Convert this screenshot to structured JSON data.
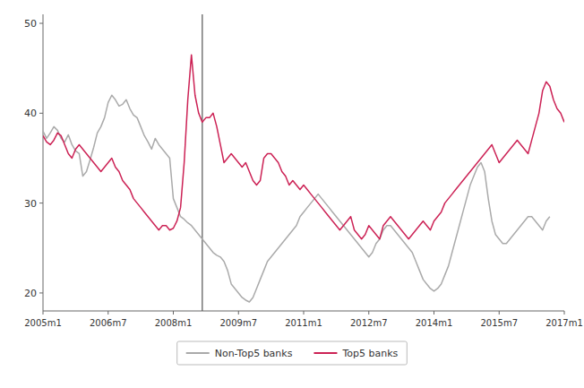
{
  "chart_data": {
    "type": "line",
    "xlim": [
      0,
      144
    ],
    "xticks": [
      {
        "value": 0,
        "label": "2005m1"
      },
      {
        "value": 18,
        "label": "2006m7"
      },
      {
        "value": 36,
        "label": "2008m1"
      },
      {
        "value": 54,
        "label": "2009m7"
      },
      {
        "value": 72,
        "label": "2011m1"
      },
      {
        "value": 90,
        "label": "2012m7"
      },
      {
        "value": 108,
        "label": "2014m1"
      },
      {
        "value": 126,
        "label": "2015m7"
      },
      {
        "value": 144,
        "label": "2017m1"
      }
    ],
    "ylim": [
      18,
      51
    ],
    "yticks": [
      20,
      30,
      40,
      50
    ],
    "vline": 44,
    "grid": false,
    "legend": "bottom",
    "series": [
      {
        "name": "Non-Top5 banks",
        "color": "#aaaaaa",
        "x": [
          0,
          1,
          2,
          3,
          4,
          5,
          6,
          7,
          8,
          9,
          10,
          11,
          12,
          13,
          14,
          15,
          16,
          17,
          18,
          19,
          20,
          21,
          22,
          23,
          24,
          25,
          26,
          27,
          28,
          29,
          30,
          31,
          32,
          33,
          34,
          35,
          36,
          37,
          38,
          39,
          40,
          41,
          42,
          43,
          44,
          45,
          46,
          47,
          48,
          49,
          50,
          51,
          52,
          53,
          54,
          55,
          56,
          57,
          58,
          59,
          60,
          61,
          62,
          63,
          64,
          65,
          66,
          67,
          68,
          69,
          70,
          71,
          72,
          73,
          74,
          75,
          76,
          77,
          78,
          79,
          80,
          81,
          82,
          83,
          84,
          85,
          86,
          87,
          88,
          89,
          90,
          91,
          92,
          93,
          94,
          95,
          96,
          97,
          98,
          99,
          100,
          101,
          102,
          103,
          104,
          105,
          106,
          107,
          108,
          109,
          110,
          111,
          112,
          113,
          114,
          115,
          116,
          117,
          118,
          119,
          120,
          121,
          122,
          123,
          124,
          125,
          126,
          127,
          128,
          129,
          130,
          131,
          132,
          133,
          134,
          135,
          136,
          137,
          138,
          139,
          140
        ],
        "values": [
          38.0,
          37.2,
          37.8,
          38.5,
          38.1,
          37.2,
          36.8,
          37.6,
          36.5,
          35.8,
          35.5,
          33.0,
          33.5,
          34.8,
          36.2,
          37.8,
          38.5,
          39.5,
          41.2,
          42.0,
          41.5,
          40.8,
          41.0,
          41.5,
          40.5,
          39.8,
          39.5,
          38.5,
          37.5,
          36.8,
          36.0,
          37.2,
          36.5,
          36.0,
          35.5,
          35.0,
          30.5,
          29.5,
          28.5,
          28.2,
          27.8,
          27.5,
          27.0,
          26.5,
          26.0,
          25.5,
          25.0,
          24.5,
          24.2,
          24.0,
          23.5,
          22.5,
          21.0,
          20.5,
          20.0,
          19.5,
          19.2,
          19.0,
          19.5,
          20.5,
          21.5,
          22.5,
          23.5,
          24.0,
          24.5,
          25.0,
          25.5,
          26.0,
          26.5,
          27.0,
          27.5,
          28.5,
          29.0,
          29.5,
          30.0,
          30.5,
          31.0,
          30.5,
          30.0,
          29.5,
          29.0,
          28.5,
          28.0,
          27.5,
          27.0,
          26.5,
          26.0,
          25.5,
          25.0,
          24.5,
          24.0,
          24.5,
          25.5,
          26.0,
          27.0,
          27.5,
          27.5,
          27.0,
          26.5,
          26.0,
          25.5,
          25.0,
          24.5,
          23.5,
          22.5,
          21.5,
          21.0,
          20.5,
          20.2,
          20.5,
          21.0,
          22.0,
          23.0,
          24.5,
          26.0,
          27.5,
          29.0,
          30.5,
          32.0,
          33.0,
          34.0,
          34.5,
          33.5,
          30.5,
          28.0,
          26.5,
          26.0,
          25.5,
          25.5,
          26.0,
          26.5,
          27.0,
          27.5,
          28.0,
          28.5,
          28.5,
          28.0,
          27.5,
          27.0,
          28.0,
          28.5
        ]
      },
      {
        "name": "Top5 banks",
        "color": "#cc2255",
        "x": [
          0,
          1,
          2,
          3,
          4,
          5,
          6,
          7,
          8,
          9,
          10,
          11,
          12,
          13,
          14,
          15,
          16,
          17,
          18,
          19,
          20,
          21,
          22,
          23,
          24,
          25,
          26,
          27,
          28,
          29,
          30,
          31,
          32,
          33,
          34,
          35,
          36,
          37,
          38,
          39,
          40,
          41,
          42,
          43,
          44,
          45,
          46,
          47,
          48,
          49,
          50,
          51,
          52,
          53,
          54,
          55,
          56,
          57,
          58,
          59,
          60,
          61,
          62,
          63,
          64,
          65,
          66,
          67,
          68,
          69,
          70,
          71,
          72,
          73,
          74,
          75,
          76,
          77,
          78,
          79,
          80,
          81,
          82,
          83,
          84,
          85,
          86,
          87,
          88,
          89,
          90,
          91,
          92,
          93,
          94,
          95,
          96,
          97,
          98,
          99,
          100,
          101,
          102,
          103,
          104,
          105,
          106,
          107,
          108,
          109,
          110,
          111,
          112,
          113,
          114,
          115,
          116,
          117,
          118,
          119,
          120,
          121,
          122,
          123,
          124,
          125,
          126,
          127,
          128,
          129,
          130,
          131,
          132,
          133,
          134,
          135,
          136,
          137,
          138,
          139,
          140,
          141,
          142,
          143,
          144
        ],
        "values": [
          37.5,
          36.8,
          36.5,
          37.0,
          37.8,
          37.5,
          36.5,
          35.5,
          35.0,
          36.0,
          36.5,
          36.0,
          35.5,
          35.0,
          34.5,
          34.0,
          33.5,
          34.0,
          34.5,
          35.0,
          34.0,
          33.5,
          32.5,
          32.0,
          31.5,
          30.5,
          30.0,
          29.5,
          29.0,
          28.5,
          28.0,
          27.5,
          27.0,
          27.5,
          27.5,
          27.0,
          27.2,
          28.0,
          29.5,
          34.5,
          41.5,
          46.5,
          42.0,
          40.0,
          39.0,
          39.5,
          39.5,
          40.0,
          38.5,
          36.5,
          34.5,
          35.0,
          35.5,
          35.0,
          34.5,
          34.0,
          34.5,
          33.5,
          32.5,
          32.0,
          32.5,
          35.0,
          35.5,
          35.5,
          35.0,
          34.5,
          33.5,
          33.0,
          32.0,
          32.5,
          32.0,
          31.5,
          32.0,
          31.5,
          31.0,
          30.5,
          30.0,
          29.5,
          29.0,
          28.5,
          28.0,
          27.5,
          27.0,
          27.5,
          28.0,
          28.5,
          27.0,
          26.5,
          26.0,
          26.5,
          27.5,
          27.0,
          26.5,
          26.0,
          27.5,
          28.0,
          28.5,
          28.0,
          27.5,
          27.0,
          26.5,
          26.0,
          26.5,
          27.0,
          27.5,
          28.0,
          27.5,
          27.0,
          28.0,
          28.5,
          29.0,
          30.0,
          30.5,
          31.0,
          31.5,
          32.0,
          32.5,
          33.0,
          33.5,
          34.0,
          34.5,
          35.0,
          35.5,
          36.0,
          36.5,
          35.5,
          34.5,
          35.0,
          35.5,
          36.0,
          36.5,
          37.0,
          36.5,
          36.0,
          35.5,
          37.0,
          38.5,
          40.0,
          42.5,
          43.5,
          43.0,
          41.5,
          40.5,
          40.0,
          39.0
        ]
      }
    ]
  }
}
